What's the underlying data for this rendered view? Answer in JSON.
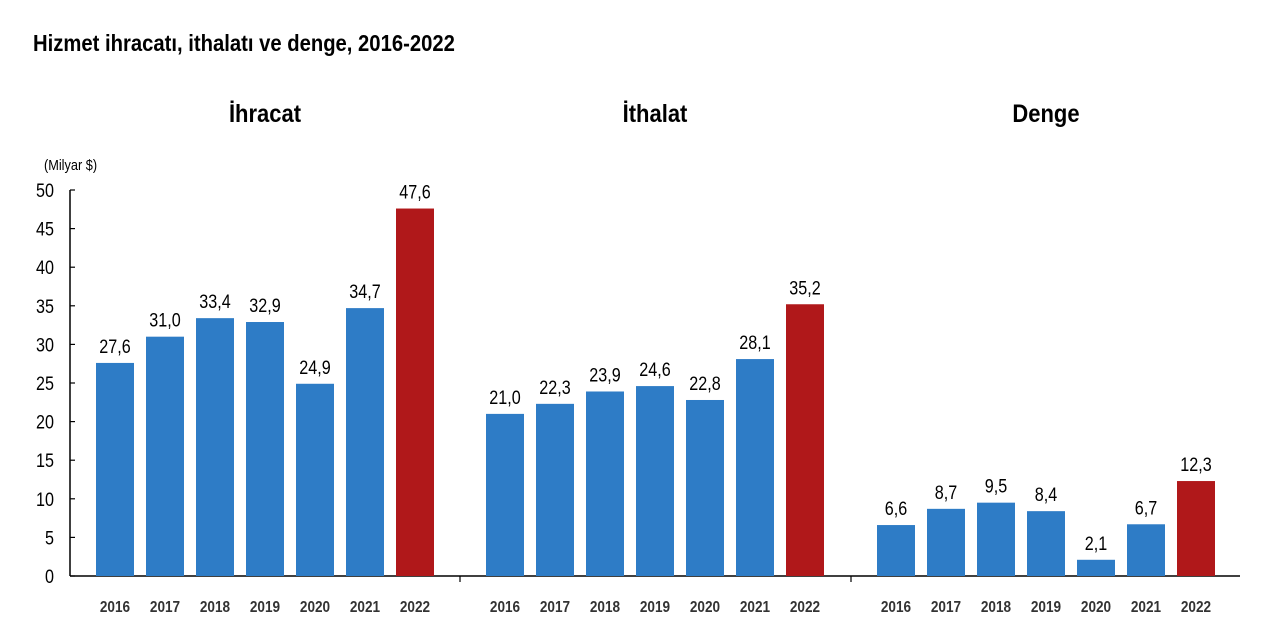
{
  "chart_data": {
    "type": "bar",
    "title": "Hizmet ihracatı, ithalatı ve denge, 2016-2022",
    "ylabel": "(Milyar $)",
    "ylim": [
      0,
      50
    ],
    "yticks": [
      0,
      5,
      10,
      15,
      20,
      25,
      30,
      35,
      40,
      45,
      50
    ],
    "grid": false,
    "categories": [
      "2016",
      "2017",
      "2018",
      "2019",
      "2020",
      "2021",
      "2022"
    ],
    "panels": [
      {
        "name": "İhracat",
        "values": [
          27.6,
          31.0,
          33.4,
          32.9,
          24.9,
          34.7,
          47.6
        ],
        "labels": [
          "27,6",
          "31,0",
          "33,4",
          "32,9",
          "24,9",
          "34,7",
          "47,6"
        ]
      },
      {
        "name": "İthalat",
        "values": [
          21.0,
          22.3,
          23.9,
          24.6,
          22.8,
          28.1,
          35.2
        ],
        "labels": [
          "21,0",
          "22,3",
          "23,9",
          "24,6",
          "22,8",
          "28,1",
          "35,2"
        ]
      },
      {
        "name": "Denge",
        "values": [
          6.6,
          8.7,
          9.5,
          8.4,
          2.1,
          6.7,
          12.3
        ],
        "labels": [
          "6,6",
          "8,7",
          "9,5",
          "8,4",
          "2,1",
          "6,7",
          "12,3"
        ]
      }
    ],
    "colors": {
      "default": "#2e7cc6",
      "highlight": "#b0181a"
    },
    "highlight_category": "2022"
  }
}
